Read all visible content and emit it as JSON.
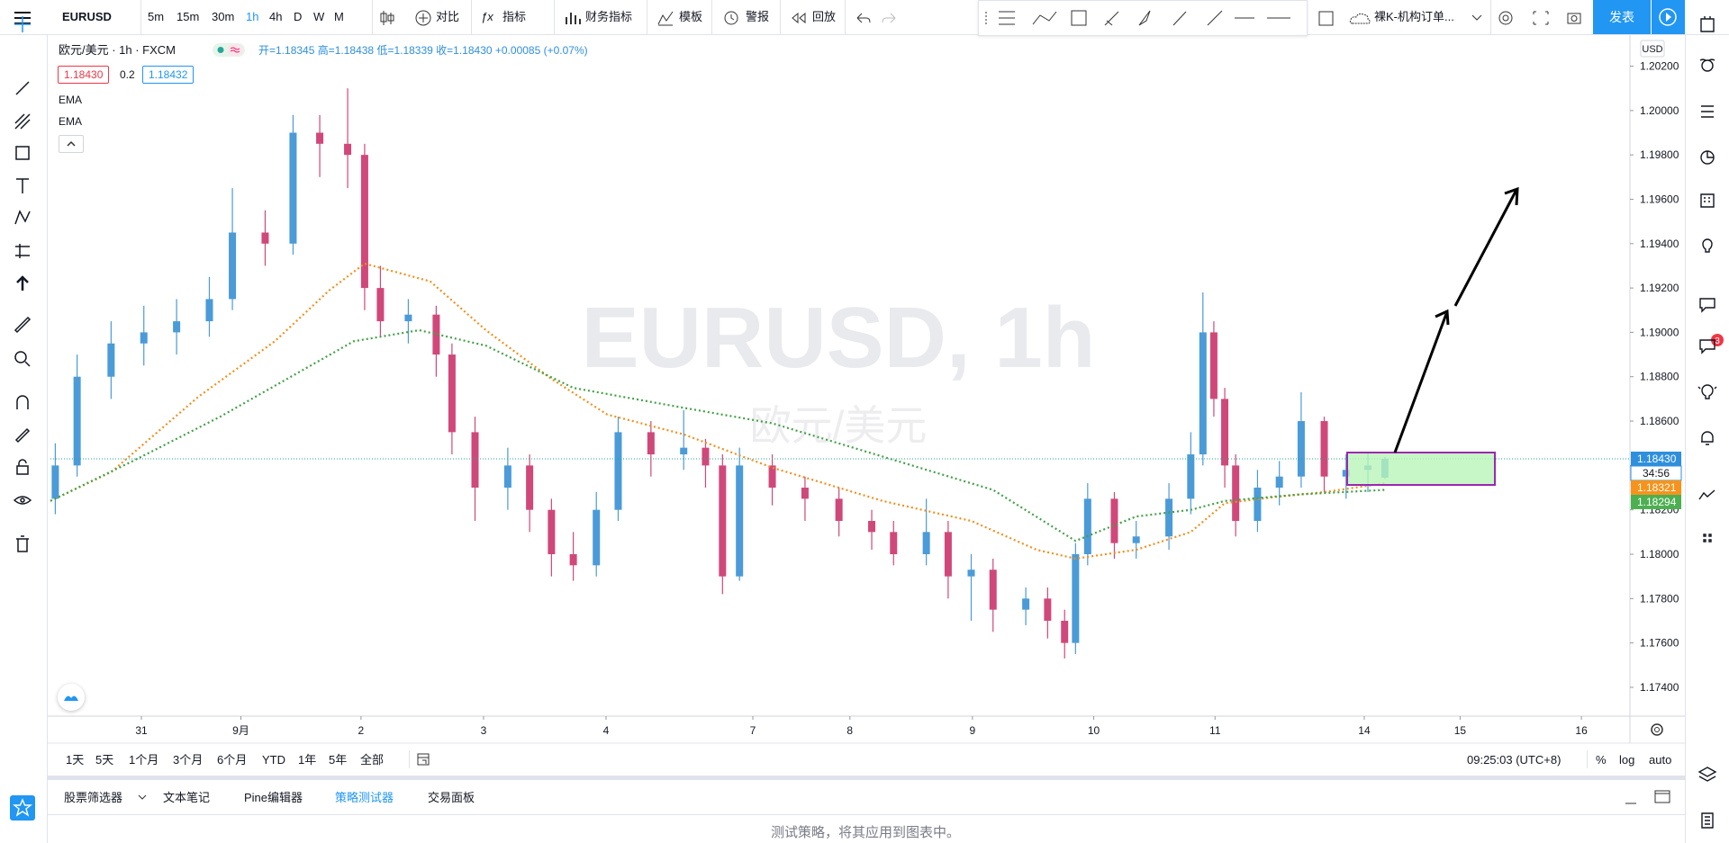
{
  "toolbar": {
    "symbol": "EURUSD",
    "intervals": [
      "5m",
      "15m",
      "30m",
      "1h",
      "4h",
      "D",
      "W",
      "M"
    ],
    "compare": "对比",
    "indicators": "指标",
    "financials": "财务指标",
    "templates": "模板",
    "alerts": "警报",
    "replay": "回放",
    "layout_name": "裸K-机构订单...",
    "publish": "发表"
  },
  "legend": {
    "symbol": "欧元/美元 · 1h · FXCM",
    "ohlc": "开=1.18345 高=1.18438 低=1.18339 收=1.18430 +0.00085 (+0.07%)",
    "bid": "1.18430",
    "spread": "0.2",
    "ask": "1.18432"
  },
  "watermark": {
    "title": "EURUSD, 1h",
    "subtitle": "欧元/美元"
  },
  "chart_data": {
    "type": "candlestick",
    "currency": "USD",
    "up_color": "#4a9bd8",
    "down_color": "#d0487a",
    "grid": false,
    "x": [
      -0.71,
      -0.53,
      -0.25,
      0.02,
      0.29,
      0.56,
      0.75,
      1.02,
      1.25,
      1.47,
      1.7,
      1.84,
      1.97,
      2.2,
      2.43,
      2.56,
      2.75,
      3.02,
      3.2,
      3.38,
      3.56,
      3.75,
      3.93,
      4.2,
      4.47,
      4.65,
      4.79,
      4.93,
      5.2,
      5.47,
      5.75,
      6.02,
      6.2,
      6.47,
      6.65,
      6.84,
      7.02,
      7.29,
      7.47,
      7.61,
      7.7,
      7.8,
      8.02,
      8.2,
      8.47,
      8.65,
      8.75,
      8.84,
      8.93,
      9.02,
      9.2,
      9.38,
      9.56,
      9.75,
      9.93,
      10.11,
      10.25
    ],
    "open": [
      1.1825,
      1.184,
      1.188,
      1.1895,
      1.19,
      1.1905,
      1.1915,
      1.1945,
      1.194,
      1.199,
      1.1985,
      1.198,
      1.192,
      1.1905,
      1.1908,
      1.189,
      1.1855,
      1.183,
      1.184,
      1.182,
      1.18,
      1.1795,
      1.182,
      1.1855,
      1.1845,
      1.1848,
      1.184,
      1.179,
      1.184,
      1.183,
      1.1825,
      1.1815,
      1.181,
      1.18,
      1.181,
      1.179,
      1.1793,
      1.1775,
      1.178,
      1.177,
      1.176,
      1.18,
      1.1825,
      1.1805,
      1.1808,
      1.1825,
      1.1845,
      1.19,
      1.187,
      1.184,
      1.1815,
      1.183,
      1.1835,
      1.186,
      1.1835,
      1.1838,
      1.18345
    ],
    "high": [
      1.185,
      1.189,
      1.1905,
      1.1912,
      1.1915,
      1.1925,
      1.1965,
      1.1955,
      1.1998,
      1.1998,
      1.201,
      1.1985,
      1.193,
      1.1915,
      1.1912,
      1.1895,
      1.1862,
      1.1848,
      1.1845,
      1.1825,
      1.181,
      1.1828,
      1.1862,
      1.186,
      1.1865,
      1.1852,
      1.1845,
      1.1848,
      1.1845,
      1.1835,
      1.183,
      1.182,
      1.1815,
      1.1825,
      1.1815,
      1.18,
      1.1798,
      1.1785,
      1.1785,
      1.1775,
      1.1805,
      1.1832,
      1.1828,
      1.1815,
      1.1832,
      1.1855,
      1.1918,
      1.1905,
      1.1875,
      1.1845,
      1.1838,
      1.1842,
      1.1873,
      1.1862,
      1.1845,
      1.1846,
      1.18438
    ],
    "low": [
      1.1818,
      1.1835,
      1.187,
      1.1885,
      1.189,
      1.1898,
      1.191,
      1.193,
      1.1935,
      1.197,
      1.1965,
      1.191,
      1.1898,
      1.1895,
      1.188,
      1.1845,
      1.1815,
      1.182,
      1.181,
      1.179,
      1.1788,
      1.179,
      1.1815,
      1.1835,
      1.1838,
      1.183,
      1.1782,
      1.1788,
      1.1822,
      1.1815,
      1.1808,
      1.1802,
      1.1795,
      1.1795,
      1.178,
      1.177,
      1.1765,
      1.1768,
      1.1762,
      1.1753,
      1.1755,
      1.1795,
      1.1798,
      1.1798,
      1.1802,
      1.1818,
      1.184,
      1.1862,
      1.183,
      1.1808,
      1.181,
      1.1822,
      1.183,
      1.1828,
      1.1825,
      1.1828,
      1.18339
    ],
    "close": [
      1.184,
      1.188,
      1.1895,
      1.19,
      1.1905,
      1.1915,
      1.1945,
      1.194,
      1.199,
      1.1985,
      1.198,
      1.192,
      1.1905,
      1.1908,
      1.189,
      1.1855,
      1.183,
      1.184,
      1.182,
      1.18,
      1.1795,
      1.182,
      1.1855,
      1.1845,
      1.1848,
      1.184,
      1.179,
      1.184,
      1.183,
      1.1825,
      1.1815,
      1.181,
      1.18,
      1.181,
      1.179,
      1.1793,
      1.1775,
      1.178,
      1.177,
      1.176,
      1.18,
      1.1825,
      1.1805,
      1.1808,
      1.1825,
      1.1845,
      1.19,
      1.187,
      1.184,
      1.1815,
      1.183,
      1.1835,
      1.186,
      1.1835,
      1.1838,
      1.184,
      1.1843
    ],
    "lines": [
      {
        "name": "EMA",
        "color": "#f0901e",
        "x": [
          -0.75,
          -0.25,
          0.47,
          1.1,
          1.55,
          1.84,
          2.38,
          2.84,
          3.38,
          3.84,
          4.47,
          5.2,
          6.11,
          6.84,
          7.38,
          7.7,
          8.2,
          8.65,
          8.93,
          9.38,
          9.75,
          10.25
        ],
        "values": [
          1.1824,
          1.1837,
          1.1871,
          1.1896,
          1.1919,
          1.1931,
          1.1923,
          1.1901,
          1.1879,
          1.1863,
          1.1854,
          1.1839,
          1.1824,
          1.1815,
          1.1802,
          1.1798,
          1.1802,
          1.181,
          1.1823,
          1.1826,
          1.1828,
          1.1832
        ]
      },
      {
        "name": "EMA",
        "color": "#43a047",
        "x": [
          -0.75,
          -0.07,
          0.65,
          1.2,
          1.75,
          2.29,
          2.84,
          3.56,
          4.47,
          5.2,
          6.11,
          7.02,
          7.7,
          8.2,
          8.65,
          8.93,
          9.56,
          10.25
        ],
        "values": [
          1.1824,
          1.1842,
          1.1862,
          1.1879,
          1.1896,
          1.1901,
          1.1894,
          1.1875,
          1.1866,
          1.1859,
          1.1844,
          1.1829,
          1.1806,
          1.1817,
          1.182,
          1.1824,
          1.1827,
          1.1829
        ]
      }
    ],
    "xlim": [
      -0.75,
      12.27
    ],
    "ylim": [
      1.1727,
      1.2034
    ],
    "xticks": [
      {
        "value": 0,
        "label": "31"
      },
      {
        "value": 0.82,
        "label": "9月"
      },
      {
        "value": 1.81,
        "label": "2"
      },
      {
        "value": 2.82,
        "label": "3"
      },
      {
        "value": 3.83,
        "label": "4"
      },
      {
        "value": 5.04,
        "label": "7"
      },
      {
        "value": 5.84,
        "label": "8"
      },
      {
        "value": 6.85,
        "label": "9"
      },
      {
        "value": 7.85,
        "label": "10"
      },
      {
        "value": 8.85,
        "label": "11"
      },
      {
        "value": 10.08,
        "label": "14"
      },
      {
        "value": 10.87,
        "label": "15"
      },
      {
        "value": 11.87,
        "label": "16"
      }
    ],
    "yticks": [
      {
        "value": 1.174,
        "label": "1.17400"
      },
      {
        "value": 1.176,
        "label": "1.17600"
      },
      {
        "value": 1.178,
        "label": "1.17800"
      },
      {
        "value": 1.18,
        "label": "1.18000"
      },
      {
        "value": 1.182,
        "label": "1.18200"
      },
      {
        "value": 1.184,
        "label": "1.18400"
      },
      {
        "value": 1.186,
        "label": "1.18600"
      },
      {
        "value": 1.188,
        "label": "1.18800"
      },
      {
        "value": 1.19,
        "label": "1.19000"
      },
      {
        "value": 1.192,
        "label": "1.19200"
      },
      {
        "value": 1.194,
        "label": "1.19400"
      },
      {
        "value": 1.196,
        "label": "1.19600"
      },
      {
        "value": 1.198,
        "label": "1.19800"
      },
      {
        "value": 1.2,
        "label": "1.20000"
      },
      {
        "value": 1.202,
        "label": "1.20200"
      }
    ],
    "price_labels": [
      {
        "value": 1.1843,
        "label": "1.18430",
        "color": "#2f8fdd"
      },
      {
        "value": 1.18321,
        "label": "1.18321",
        "color": "#f7931a"
      },
      {
        "value": 1.18294,
        "label": "1.18294",
        "color": "#4caf50"
      }
    ],
    "countdown": "34:56"
  },
  "ranges": [
    "1天",
    "5天",
    "1个月",
    "3个月",
    "6个月",
    "YTD",
    "1年",
    "5年",
    "全部"
  ],
  "clock": "09:25:03 (UTC+8)",
  "scale_options": [
    "%",
    "log",
    "auto"
  ],
  "panel": {
    "tabs": [
      "股票筛选器",
      "文本笔记",
      "Pine编辑器",
      "策略测试器",
      "交易面板"
    ],
    "message": "测试策略，将其应用到图表中。"
  },
  "sidebar_badge": "3"
}
